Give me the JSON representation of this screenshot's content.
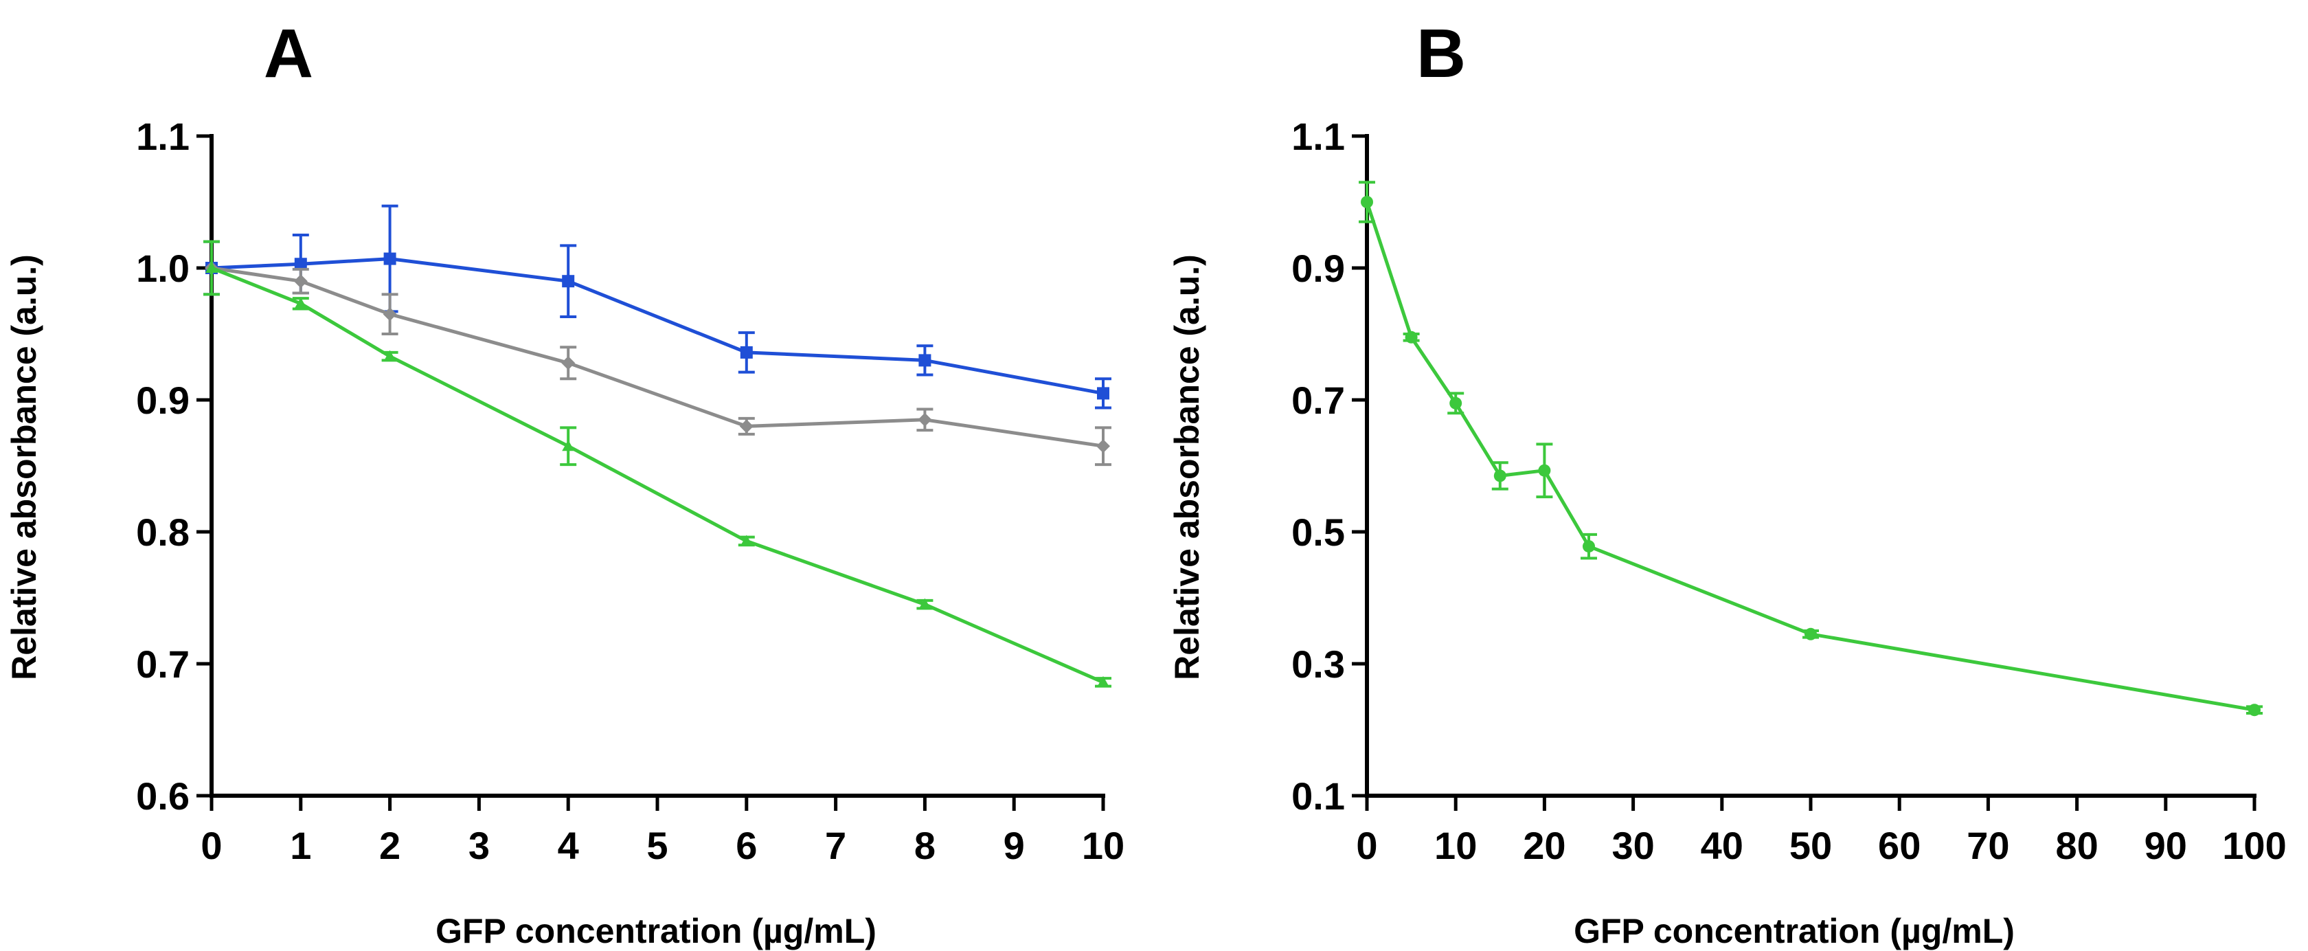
{
  "chart_data": [
    {
      "panel": "A",
      "type": "line",
      "title": "",
      "xlabel": "GFP concentration (µg/mL)",
      "ylabel": "Relative absorbance (a.u.)",
      "xlim": [
        0,
        10
      ],
      "ylim": [
        0.6,
        1.1
      ],
      "x_ticks": [
        "0",
        "1",
        "2",
        "3",
        "4",
        "5",
        "6",
        "7",
        "8",
        "9",
        "10"
      ],
      "y_ticks": [
        "0.6",
        "0.7",
        "0.8",
        "0.9",
        "1.0",
        "1.1"
      ],
      "grid": false,
      "series": [
        {
          "name": "blue series",
          "color": "#1f4fd6",
          "marker": "square",
          "x": [
            0,
            1,
            2,
            4,
            6,
            8,
            10
          ],
          "values": [
            1.0,
            1.003,
            1.007,
            0.99,
            0.936,
            0.93,
            0.905
          ],
          "errors": [
            0.02,
            0.022,
            0.04,
            0.027,
            0.015,
            0.011,
            0.011
          ]
        },
        {
          "name": "gray series",
          "color": "#8c8c8c",
          "marker": "diamond",
          "x": [
            0,
            1,
            2,
            4,
            6,
            8,
            10
          ],
          "values": [
            1.0,
            0.99,
            0.965,
            0.928,
            0.88,
            0.885,
            0.865
          ],
          "errors": [
            0.02,
            0.009,
            0.015,
            0.012,
            0.006,
            0.008,
            0.014
          ]
        },
        {
          "name": "green series",
          "color": "#3cc83c",
          "marker": "triangle",
          "x": [
            0,
            1,
            2,
            4,
            6,
            8,
            10
          ],
          "values": [
            1.0,
            0.973,
            0.933,
            0.865,
            0.793,
            0.745,
            0.686
          ],
          "errors": [
            0.02,
            0.004,
            0.003,
            0.014,
            0.003,
            0.003,
            0.003
          ]
        }
      ]
    },
    {
      "panel": "B",
      "type": "line",
      "title": "",
      "xlabel": "GFP concentration (µg/mL)",
      "ylabel": "Relative absorbance (a.u.)",
      "xlim": [
        0,
        100
      ],
      "ylim": [
        0.1,
        1.1
      ],
      "x_ticks": [
        "0",
        "10",
        "20",
        "30",
        "40",
        "50",
        "60",
        "70",
        "80",
        "90",
        "100"
      ],
      "y_ticks": [
        "0.1",
        "0.3",
        "0.5",
        "0.7",
        "0.9",
        "1.1"
      ],
      "grid": false,
      "series": [
        {
          "name": "green series",
          "color": "#3cc83c",
          "marker": "circle",
          "x": [
            0,
            5,
            10,
            15,
            20,
            25,
            50,
            100
          ],
          "values": [
            1.0,
            0.795,
            0.695,
            0.585,
            0.593,
            0.478,
            0.345,
            0.23
          ],
          "errors": [
            0.03,
            0.005,
            0.015,
            0.02,
            0.04,
            0.018,
            0.005,
            0.005
          ]
        }
      ]
    }
  ]
}
